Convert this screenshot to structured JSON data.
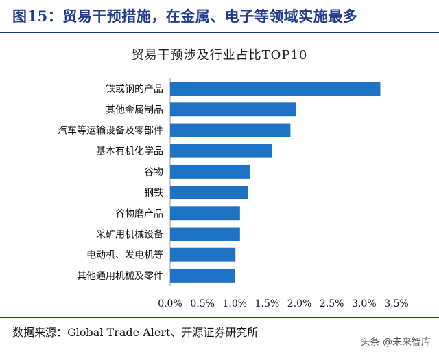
{
  "header": {
    "title": "图15：贸易干预措施，在金属、电子等领域实施最多"
  },
  "chart_data": {
    "type": "bar",
    "orientation": "horizontal",
    "title": "贸易干预涉及行业占比TOP10",
    "xlabel": "",
    "ylabel": "",
    "categories": [
      "铁或钢的产品",
      "其他金属制品",
      "汽车等运输设备及零部件",
      "基本有机化学品",
      "谷物",
      "钢铁",
      "谷物磨产品",
      "采矿用机械设备",
      "电动机、发电机等",
      "其他通用机械及零件"
    ],
    "series": [
      {
        "values": [
          3.25,
          1.95,
          1.86,
          1.58,
          1.23,
          1.2,
          1.08,
          1.08,
          1.01,
          1.0
        ]
      }
    ],
    "xlim": [
      0,
      3.5
    ],
    "x_ticks": [
      "0.0%",
      "0.5%",
      "1.0%",
      "1.5%",
      "2.0%",
      "2.5%",
      "3.0%",
      "3.5%"
    ],
    "bar_color": "#1f73c4",
    "grid": false,
    "legend": "none"
  },
  "footer": {
    "source": "数据来源：Global Trade Alert、开源证券研究所",
    "watermark": "头条 @未来智库"
  }
}
